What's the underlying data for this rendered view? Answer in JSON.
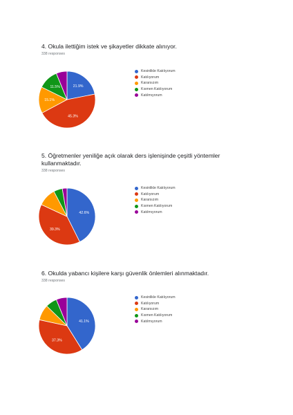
{
  "legend_labels": [
    "Kesinlikle Katılıyorum",
    "Katılıyorum",
    "Kararsızım",
    "Kısmen Katılıyorum",
    "Katılmıyorum"
  ],
  "colors": [
    "#3366cc",
    "#dc3912",
    "#ff9900",
    "#109618",
    "#990099"
  ],
  "questions": [
    {
      "title": "4. Okula ilettiğim istek ve şikayetler dikkate alınıyor.",
      "responses": "338 responses"
    },
    {
      "title": "5. Öğretmenler yeniliğe açık olarak ders işlenişinde çeşitli yöntemler kullanmaktadır.",
      "responses": "338 responses"
    },
    {
      "title": "6. Okulda yabancı kişilere karşı güvenlik önlemleri alınmaktadır.",
      "responses": "338 responses"
    }
  ],
  "chart_data": [
    {
      "type": "pie",
      "categories": [
        "Kesinlikle Katılıyorum",
        "Katılıyorum",
        "Kararsızım",
        "Kısmen Katılıyorum",
        "Katılmıyorum"
      ],
      "values": [
        21.9,
        45.3,
        15.1,
        11.5,
        6.2
      ],
      "slice_labels": [
        "21.9%",
        "45.3%",
        "15.1%",
        "11.5%",
        ""
      ],
      "legend": "right"
    },
    {
      "type": "pie",
      "categories": [
        "Kesinlikle Katılıyorum",
        "Katılıyorum",
        "Kararsızım",
        "Kısmen Katılıyorum",
        "Katılmıyorum"
      ],
      "values": [
        42.6,
        39.3,
        10.4,
        5.0,
        2.7
      ],
      "slice_labels": [
        "42.6%",
        "39.3%",
        "",
        "",
        ""
      ],
      "legend": "right"
    },
    {
      "type": "pie",
      "categories": [
        "Kesinlikle Katılıyorum",
        "Katılıyorum",
        "Kararsızım",
        "Kısmen Katılıyorum",
        "Katılmıyorum"
      ],
      "values": [
        41.1,
        37.3,
        8.9,
        6.5,
        6.2
      ],
      "slice_labels": [
        "41.1%",
        "37.3%",
        "",
        "",
        ""
      ],
      "legend": "right"
    }
  ]
}
